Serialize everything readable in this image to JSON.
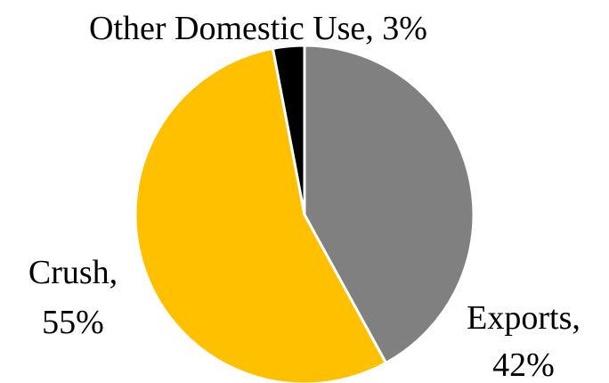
{
  "chart_data": {
    "type": "pie",
    "title": "",
    "slices": [
      {
        "label": "Exports",
        "value": 42,
        "color": "#808080",
        "name_text": "Exports,",
        "value_text": "42%",
        "label_position": "bottom-right"
      },
      {
        "label": "Crush",
        "value": 55,
        "color": "#ffc000",
        "name_text": "Crush,",
        "value_text": "55%",
        "label_position": "left"
      },
      {
        "label": "Other Domestic Use",
        "value": 3,
        "color": "#000000",
        "name_text": "Other Domestic Use, 3%",
        "value_text": "",
        "label_position": "top"
      }
    ],
    "start_angle_deg": 0,
    "direction": "clockwise",
    "legend": "none"
  }
}
